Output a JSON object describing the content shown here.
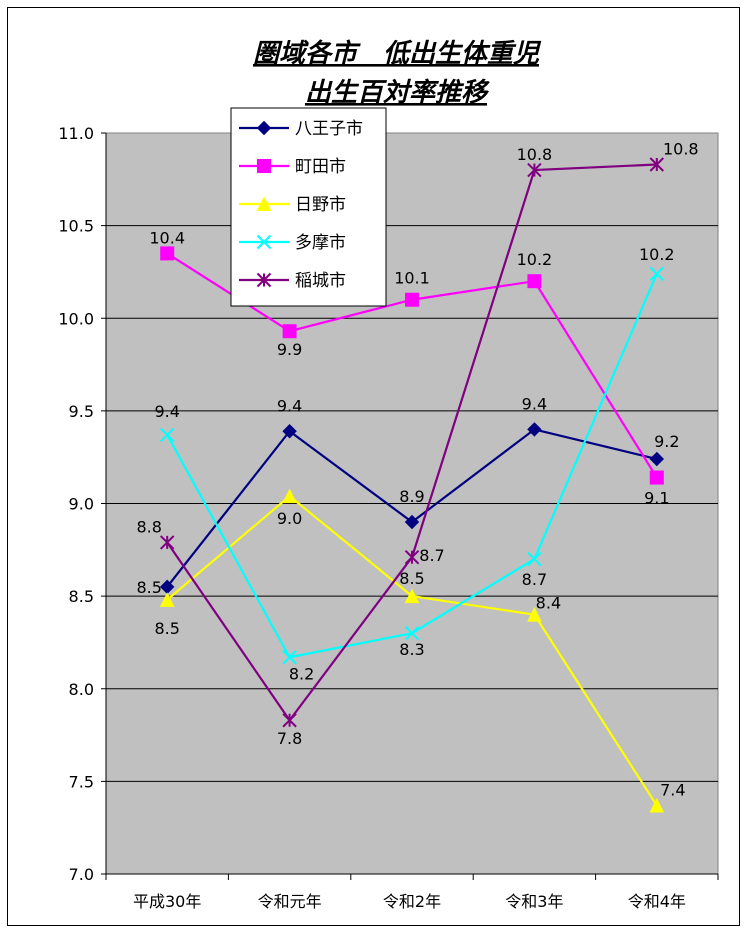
{
  "chart_data": {
    "type": "line",
    "title_lines": [
      "圏域各市　低出生体重児",
      "出生百対率推移"
    ],
    "categories": [
      "平成30年",
      "令和元年",
      "令和2年",
      "令和3年",
      "令和4年"
    ],
    "ylim": [
      7.0,
      11.0
    ],
    "yticks": [
      "7.0",
      "7.5",
      "8.0",
      "8.5",
      "9.0",
      "9.5",
      "10.0",
      "10.5",
      "11.0"
    ],
    "grid": true,
    "legend_position": "top-left inside plot",
    "plot_background": "#C0C0C0",
    "series": [
      {
        "name": "八王子市",
        "color": "#000080",
        "marker": "diamond",
        "values": [
          8.55,
          9.39,
          8.9,
          9.4,
          9.24
        ],
        "labels": [
          "8.5",
          "9.4",
          "8.9",
          "9.4",
          "9.2"
        ]
      },
      {
        "name": "町田市",
        "color": "#FF00FF",
        "marker": "square",
        "values": [
          10.35,
          9.93,
          10.1,
          10.2,
          9.14
        ],
        "labels": [
          "10.4",
          "9.9",
          "10.1",
          "10.2",
          "9.1"
        ]
      },
      {
        "name": "日野市",
        "color": "#FFFF00",
        "marker": "triangle",
        "values": [
          8.48,
          9.04,
          8.5,
          8.4,
          7.37
        ],
        "labels": [
          "8.5",
          "9.0",
          "8.5",
          "8.4",
          "7.4"
        ]
      },
      {
        "name": "多摩市",
        "color": "#00FFFF",
        "marker": "x",
        "values": [
          9.37,
          8.17,
          8.3,
          8.7,
          10.24
        ],
        "labels": [
          "9.4",
          "8.2",
          "8.3",
          "8.7",
          "10.2"
        ]
      },
      {
        "name": "稲城市",
        "color": "#800080",
        "marker": "star",
        "values": [
          8.79,
          7.83,
          8.71,
          10.8,
          10.83
        ],
        "labels": [
          "8.8",
          "7.8",
          "8.7",
          "10.8",
          "10.8"
        ]
      }
    ]
  }
}
